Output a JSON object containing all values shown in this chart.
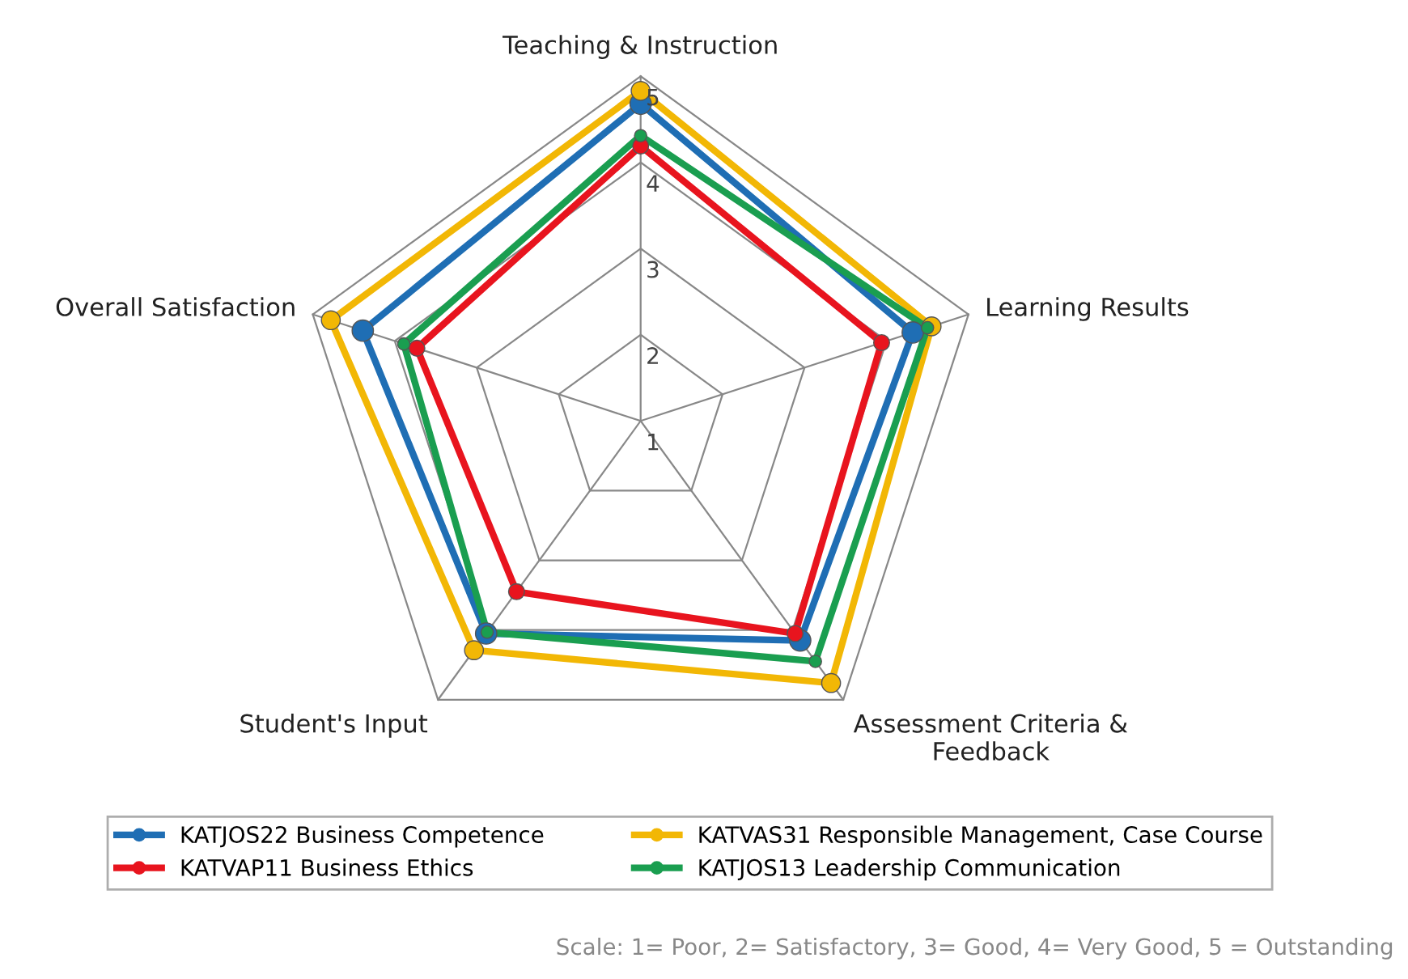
{
  "chart_data": {
    "type": "radar",
    "categories": [
      "Teaching & Instruction",
      "Learning Results",
      "Assessment Criteria &\nFeedback",
      "Student's Input",
      "Overall Satisfaction"
    ],
    "ylim": [
      1,
      5
    ],
    "yticks": [
      1,
      2,
      3,
      4,
      5
    ],
    "grid": true,
    "marker": "circle",
    "legend": "bottom",
    "series": [
      {
        "name": "KATJOS22 Business Competence",
        "color": "#1f6eb4",
        "values": [
          4.68,
          4.32,
          4.15,
          4.05,
          4.39
        ]
      },
      {
        "name": "KATVAS31 Responsible Management, Case Course",
        "color": "#f2b705",
        "values": [
          4.83,
          4.55,
          4.76,
          4.29,
          4.78
        ]
      },
      {
        "name": "KATVAP11 Business Ethics",
        "color": "#e8141e",
        "values": [
          4.19,
          3.94,
          4.05,
          3.45,
          3.73
        ]
      },
      {
        "name": "KATJOS13 Leadership Communication",
        "color": "#1a9e50",
        "values": [
          4.31,
          4.5,
          4.45,
          4.03,
          3.89
        ]
      }
    ],
    "annotations": [
      "Scale: 1= Poor, 2= Satisfactory, 3= Good, 4= Very Good, 5 = Outstanding"
    ]
  }
}
